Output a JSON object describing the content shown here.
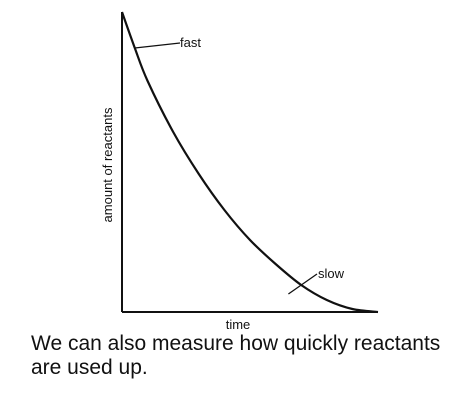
{
  "chart_data": {
    "type": "line",
    "xlabel": "time",
    "ylabel": "amount of reactants",
    "grid": false,
    "x_ticks_shown": false,
    "y_ticks_shown": false,
    "series": [
      {
        "x": [
          0,
          0.05,
          0.1,
          0.2,
          0.3,
          0.4,
          0.5,
          0.6,
          0.7,
          0.8,
          0.9,
          1.0
        ],
        "y": [
          1.0,
          0.88,
          0.77,
          0.6,
          0.46,
          0.34,
          0.24,
          0.16,
          0.09,
          0.04,
          0.01,
          0.0
        ]
      }
    ],
    "annotations": [
      {
        "text": "fast",
        "x": 0.05,
        "y": 0.88
      },
      {
        "text": "slow",
        "x": 0.65,
        "y": 0.06
      }
    ]
  },
  "caption": "We can also measure how quickly reactants are used up."
}
